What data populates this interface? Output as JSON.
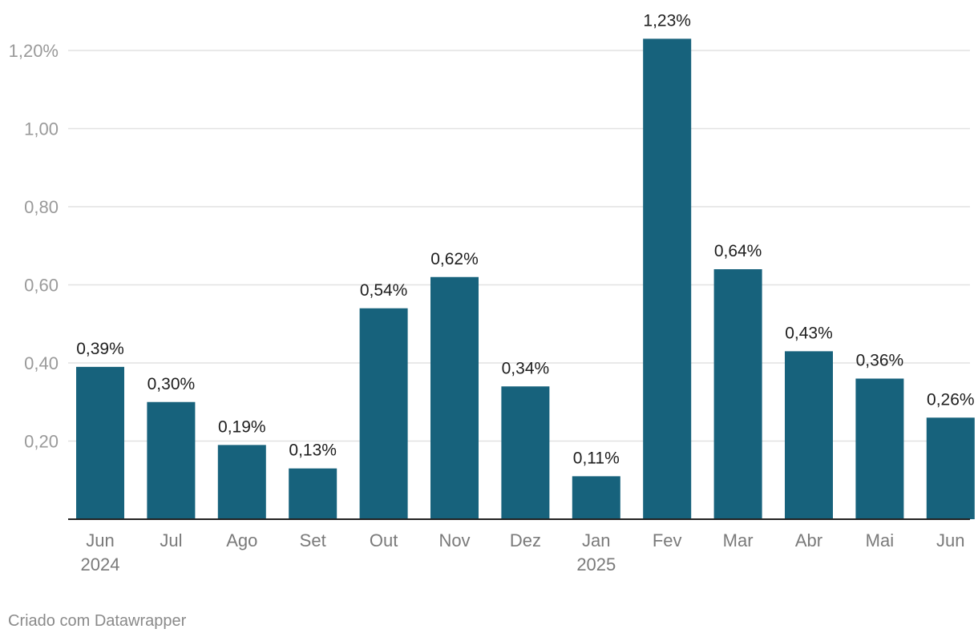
{
  "chart_data": {
    "type": "bar",
    "categories": [
      "Jun",
      "Jul",
      "Ago",
      "Set",
      "Out",
      "Nov",
      "Dez",
      "Jan",
      "Fev",
      "Mar",
      "Abr",
      "Mai",
      "Jun"
    ],
    "year_labels": [
      "2024",
      "",
      "",
      "",
      "",
      "",
      "",
      "2025",
      "",
      "",
      "",
      "",
      ""
    ],
    "values": [
      0.39,
      0.3,
      0.19,
      0.13,
      0.54,
      0.62,
      0.34,
      0.11,
      1.23,
      0.64,
      0.43,
      0.36,
      0.26
    ],
    "value_labels": [
      "0,39%",
      "0,30%",
      "0,19%",
      "0,13%",
      "0,54%",
      "0,62%",
      "0,34%",
      "0,11%",
      "1,23%",
      "0,64%",
      "0,43%",
      "0,36%",
      "0,26%"
    ],
    "yticks": [
      0.2,
      0.4,
      0.6,
      0.8,
      1.0,
      1.2
    ],
    "ytick_labels": [
      "0,20",
      "0,40",
      "0,60",
      "0,80",
      "1,00",
      "1,20%"
    ],
    "ylim": [
      0,
      1.2
    ],
    "grid": true,
    "bar_color": "#17627c",
    "title": "",
    "xlabel": "",
    "ylabel": ""
  },
  "footer": {
    "credit": "Criado com Datawrapper"
  }
}
